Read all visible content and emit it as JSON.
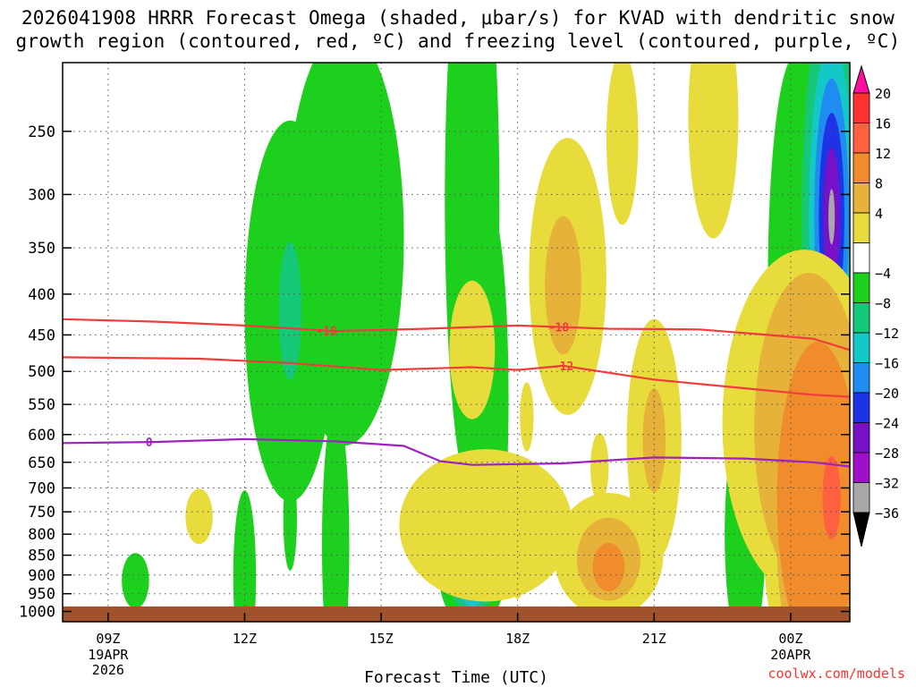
{
  "title_line1": "2026041908 HRRR Forecast Omega (shaded, μbar/s) for KVAD with dendritic snow",
  "title_line2": "growth region (contoured, red, ºC) and freezing level (contoured, purple, ºC)",
  "xlabel": "Forecast Time (UTC)",
  "credit": "coolwx.com/models",
  "chart_data": {
    "type": "time-height cross-section",
    "title": "2026041908 HRRR Forecast Omega (shaded, μbar/s) for KVAD with dendritic snow growth region (contoured, red, ºC) and freezing level (contoured, purple, ºC)",
    "xlabel": "Forecast Time (UTC)",
    "ylabel": "",
    "x_range_hours_since_08Z": [
      0,
      17.3
    ],
    "y_axis": "pressure (hPa), inverted, log",
    "ylim": [
      1030,
      205
    ],
    "grid": true,
    "y_ticks": [
      250,
      300,
      350,
      400,
      450,
      500,
      550,
      600,
      650,
      700,
      750,
      800,
      850,
      900,
      950,
      1000
    ],
    "x_ticks": [
      {
        "hour": 1,
        "label": "09Z",
        "sub": [
          "19APR",
          "2026"
        ]
      },
      {
        "hour": 4,
        "label": "12Z",
        "sub": []
      },
      {
        "hour": 7,
        "label": "15Z",
        "sub": []
      },
      {
        "hour": 10,
        "label": "18Z",
        "sub": []
      },
      {
        "hour": 13,
        "label": "21Z",
        "sub": []
      },
      {
        "hour": 16,
        "label": "00Z",
        "sub": [
          "20APR"
        ]
      }
    ],
    "colorbar": {
      "levels": [
        "20",
        "16",
        "12",
        "8",
        "4",
        "−4",
        "−8",
        "−12",
        "−16",
        "−20",
        "−24",
        "−28",
        "−32",
        "−36"
      ],
      "colors": [
        "#ff0fa0",
        "#ff3030",
        "#ff6040",
        "#f08c2c",
        "#e6b23a",
        "#e8dc3c",
        "#ffffff",
        "#1ed01e",
        "#14c878",
        "#14c8c8",
        "#1e8cf0",
        "#1e32e6",
        "#7810c8",
        "#a00fc8",
        "#a8a8a8",
        "#000000"
      ]
    },
    "contours": [
      {
        "name": "-18",
        "color": "#f03c3c",
        "label_at_hours": [
          5.8,
          10.9
        ],
        "points": [
          [
            0,
            430
          ],
          [
            2,
            433
          ],
          [
            4,
            438
          ],
          [
            6,
            445
          ],
          [
            8,
            442
          ],
          [
            10,
            438
          ],
          [
            12,
            442
          ],
          [
            14,
            443
          ],
          [
            15.5,
            450
          ],
          [
            16.5,
            455
          ],
          [
            17.3,
            470
          ]
        ]
      },
      {
        "name": "-12",
        "color": "#f03c3c",
        "label_at_hours": [
          11
        ],
        "points": [
          [
            0,
            480
          ],
          [
            3,
            482
          ],
          [
            5,
            488
          ],
          [
            7,
            498
          ],
          [
            9,
            494
          ],
          [
            10,
            498
          ],
          [
            11,
            492
          ],
          [
            13,
            512
          ],
          [
            15,
            525
          ],
          [
            16.5,
            535
          ],
          [
            17.3,
            538
          ]
        ]
      },
      {
        "name": "0",
        "color": "#a020c0",
        "label_at_hours": [
          1.9
        ],
        "points": [
          [
            0,
            615
          ],
          [
            2,
            613
          ],
          [
            4,
            608
          ],
          [
            6,
            612
          ],
          [
            7.5,
            620
          ],
          [
            8.3,
            648
          ],
          [
            9,
            655
          ],
          [
            11,
            652
          ],
          [
            13,
            641
          ],
          [
            15,
            643
          ],
          [
            16.5,
            650
          ],
          [
            17.3,
            658
          ]
        ]
      }
    ],
    "shaded_regions": [
      {
        "level": "-4",
        "t": 6.2,
        "p": 340,
        "dt": 1.3,
        "r": 0.6
      },
      {
        "level": "-4",
        "t": 9.0,
        "p": 305,
        "dt": 0.6,
        "r": 0.85
      },
      {
        "level": "-4",
        "t": 5.0,
        "p": 420,
        "dt": 1.0,
        "r": 0.55
      },
      {
        "level": "-4",
        "t": 16.1,
        "p": 385,
        "dt": 0.6,
        "r": 0.65
      },
      {
        "level": "-8",
        "t": 5.0,
        "p": 420,
        "dt": 0.25,
        "r": 0.2
      },
      {
        "level": "-4",
        "t": 9.4,
        "p": 540,
        "dt": 0.4,
        "r": 0.55
      },
      {
        "level": "-4",
        "t": 6.0,
        "p": 825,
        "dt": 0.3,
        "r": 0.4
      },
      {
        "level": "-4",
        "t": 4.0,
        "p": 905,
        "dt": 0.25,
        "r": 0.25
      },
      {
        "level": "-4",
        "t": 1.6,
        "p": 915,
        "dt": 0.3,
        "r": 0.08
      },
      {
        "level": "-4",
        "t": 5.0,
        "p": 765,
        "dt": 0.15,
        "r": 0.15
      },
      {
        "level": "-4",
        "t": 15.0,
        "p": 800,
        "dt": 0.45,
        "r": 0.35
      },
      {
        "level": "-4",
        "t": 16.9,
        "p": 320,
        "dt": 0.9,
        "r": 0.85
      },
      {
        "level": "-8",
        "t": 16.9,
        "p": 320,
        "dt": 0.65,
        "r": 0.65
      },
      {
        "level": "-12",
        "t": 16.9,
        "p": 320,
        "dt": 0.5,
        "r": 0.5
      },
      {
        "level": "-16",
        "t": 16.9,
        "p": 320,
        "dt": 0.38,
        "r": 0.4
      },
      {
        "level": "-20",
        "t": 16.9,
        "p": 320,
        "dt": 0.28,
        "r": 0.3
      },
      {
        "level": "-24",
        "t": 16.9,
        "p": 320,
        "dt": 0.18,
        "r": 0.2
      },
      {
        "level": "-32",
        "t": 16.9,
        "p": 320,
        "dt": 0.07,
        "r": 0.08
      },
      {
        "level": "-4",
        "t": 9.0,
        "p": 880,
        "dt": 0.75,
        "r": 0.18
      },
      {
        "level": "-8",
        "t": 9.0,
        "p": 890,
        "dt": 0.5,
        "r": 0.13
      },
      {
        "level": "-12",
        "t": 9.0,
        "p": 893,
        "dt": 0.35,
        "r": 0.1
      },
      {
        "level": "-16",
        "t": 9.0,
        "p": 895,
        "dt": 0.22,
        "r": 0.07
      },
      {
        "level": "-24",
        "t": 9.0,
        "p": 897,
        "dt": 0.1,
        "r": 0.04
      },
      {
        "level": "4",
        "t": 11.1,
        "p": 380,
        "dt": 0.85,
        "r": 0.4
      },
      {
        "level": "8",
        "t": 11.0,
        "p": 390,
        "dt": 0.4,
        "r": 0.2
      },
      {
        "level": "4",
        "t": 13.0,
        "p": 610,
        "dt": 0.6,
        "r": 0.35
      },
      {
        "level": "8",
        "t": 13.0,
        "p": 610,
        "dt": 0.25,
        "r": 0.15
      },
      {
        "level": "4",
        "t": 11.8,
        "p": 660,
        "dt": 0.2,
        "r": 0.1
      },
      {
        "level": "4",
        "t": 9.0,
        "p": 470,
        "dt": 0.5,
        "r": 0.2
      },
      {
        "level": "4",
        "t": 14.3,
        "p": 240,
        "dt": 0.55,
        "r": 0.35
      },
      {
        "level": "4",
        "t": 12.3,
        "p": 255,
        "dt": 0.35,
        "r": 0.25
      },
      {
        "level": "4",
        "t": 10.2,
        "p": 570,
        "dt": 0.15,
        "r": 0.1
      },
      {
        "level": "4",
        "t": 9.3,
        "p": 780,
        "dt": 1.9,
        "r": 0.22
      },
      {
        "level": "4",
        "t": 12.0,
        "p": 850,
        "dt": 1.2,
        "r": 0.18
      },
      {
        "level": "8",
        "t": 12.0,
        "p": 860,
        "dt": 0.7,
        "r": 0.12
      },
      {
        "level": "12",
        "t": 12.0,
        "p": 880,
        "dt": 0.35,
        "r": 0.07
      },
      {
        "level": "4",
        "t": 3.0,
        "p": 760,
        "dt": 0.3,
        "r": 0.08
      },
      {
        "level": "4",
        "t": 10.0,
        "p": 890,
        "dt": 0.15,
        "r": 0.08
      },
      {
        "level": "4",
        "t": 16.3,
        "p": 580,
        "dt": 1.8,
        "r": 0.5
      },
      {
        "level": "4",
        "t": 16.8,
        "p": 810,
        "dt": 1.4,
        "r": 0.5
      },
      {
        "level": "8",
        "t": 16.4,
        "p": 590,
        "dt": 1.2,
        "r": 0.45
      },
      {
        "level": "8",
        "t": 16.7,
        "p": 830,
        "dt": 1.0,
        "r": 0.4
      },
      {
        "level": "12",
        "t": 16.6,
        "p": 720,
        "dt": 0.9,
        "r": 0.45
      },
      {
        "level": "16",
        "t": 16.9,
        "p": 720,
        "dt": 0.2,
        "r": 0.12
      }
    ]
  }
}
